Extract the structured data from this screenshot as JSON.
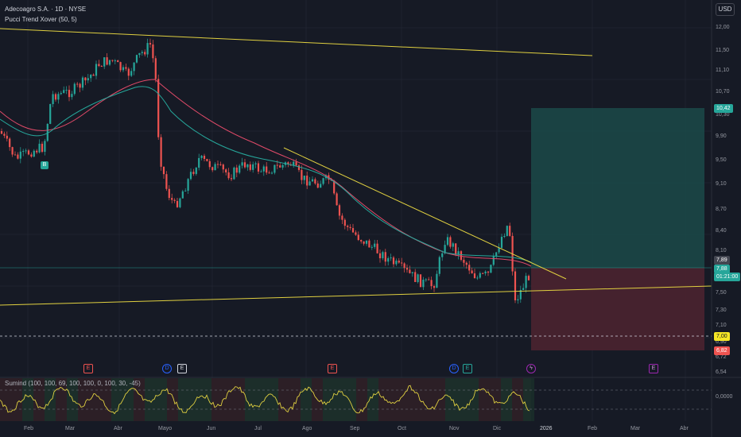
{
  "header": {
    "title": "Adecoagro S.A. · 1D · NYSE",
    "indicator": "Pucci Trend Xover (50, 5)",
    "currency": "USD"
  },
  "oscillator": {
    "label": "Sumind (100, 100, 69, 100, 100, 0, 100, 30, -45)",
    "value": "0,0000"
  },
  "price_axis": [
    "12,00",
    "11,50",
    "11,10",
    "10,70",
    "10,30",
    "9,90",
    "9,50",
    "9,10",
    "8,70",
    "8,40",
    "8,10",
    "7,50",
    "7,30",
    "7,10",
    "6,90",
    "6,72",
    "6,54"
  ],
  "price_tags": {
    "target": "10,42",
    "current": "7,89",
    "last": "7,88",
    "countdown": "01:21:00",
    "entry": "7,00",
    "stop": "6,82"
  },
  "time_axis": [
    "Feb",
    "Mar",
    "Abr",
    "Mayo",
    "Jun",
    "Jul",
    "Ago",
    "Sep",
    "Oct",
    "Nov",
    "Dic",
    "2026",
    "Feb",
    "Mar",
    "Abr"
  ],
  "events": {
    "e1": "E",
    "d1": "D",
    "s1": "E",
    "e2": "E",
    "d2": "D",
    "e3": "E",
    "bolt": "ϟ",
    "e4": "E",
    "buy": "B"
  },
  "colors": {
    "background": "#161a25",
    "up": "#26a69a",
    "down": "#ef5350",
    "trendline": "#e0d040",
    "ma_fast": "#26a69a",
    "ma_slow": "#e04a68",
    "target_zone": "#1b4a49",
    "stop_zone": "#4a2430"
  }
}
